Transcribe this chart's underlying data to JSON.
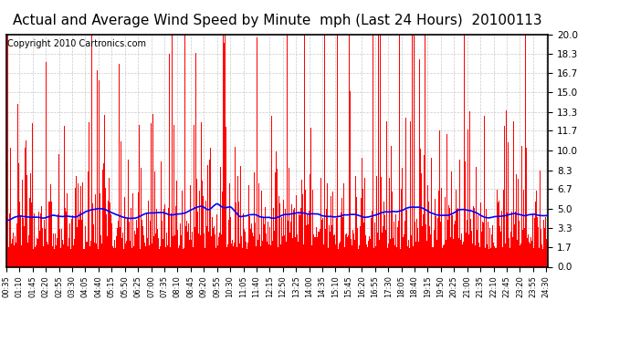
{
  "title": "Actual and Average Wind Speed by Minute  mph (Last 24 Hours)  20100113",
  "copyright": "Copyright 2010 Cartronics.com",
  "y_ticks": [
    0.0,
    1.7,
    3.3,
    5.0,
    6.7,
    8.3,
    10.0,
    11.7,
    13.3,
    15.0,
    16.7,
    18.3,
    20.0
  ],
  "y_max": 20.0,
  "y_min": 0.0,
  "bar_color": "#FF0000",
  "line_color": "#0000FF",
  "bg_color": "#FFFFFF",
  "grid_color": "#BBBBBB",
  "title_fontsize": 11,
  "copyright_fontsize": 7,
  "seed": 42
}
